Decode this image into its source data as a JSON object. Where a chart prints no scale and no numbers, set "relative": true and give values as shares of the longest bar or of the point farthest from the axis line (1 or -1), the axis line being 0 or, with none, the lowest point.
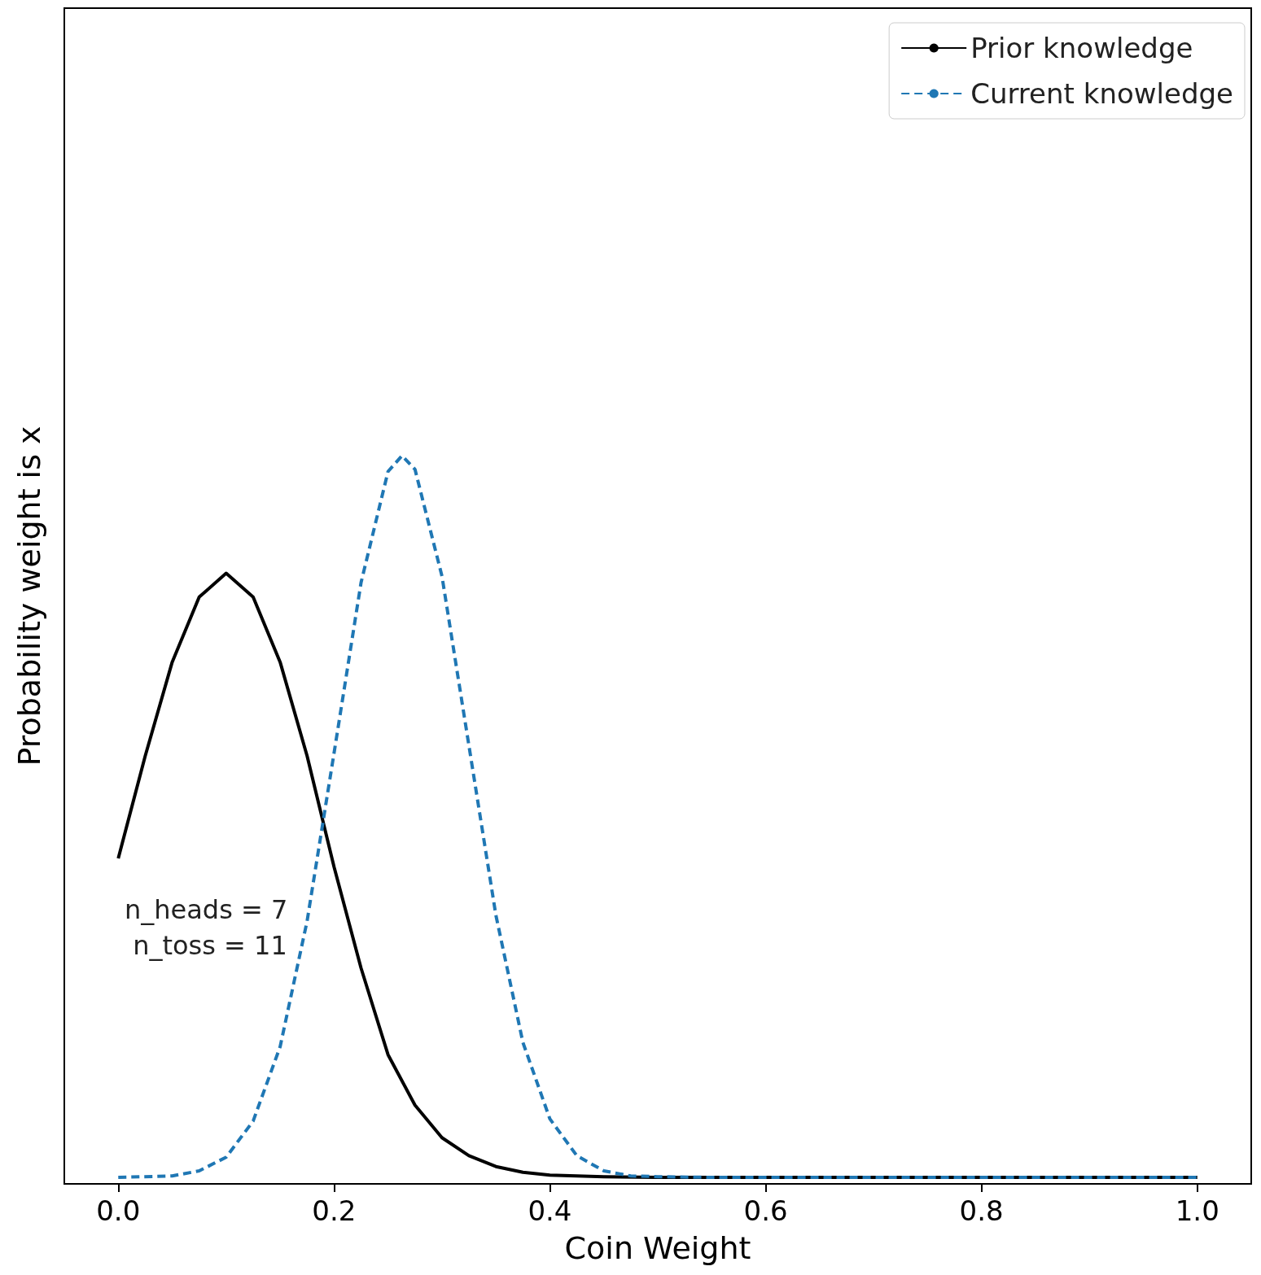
{
  "chart_data": {
    "type": "line",
    "xlabel": "Coin Weight",
    "ylabel": "Probability weight is x",
    "relative": true,
    "tick_labels": "x",
    "grid": false,
    "legend": "top right",
    "marker": "none",
    "xlim": [
      -0.05,
      1.05
    ],
    "xticks": [
      {
        "value": 0,
        "label": "0.0"
      },
      {
        "value": 0.2,
        "label": "0.2"
      },
      {
        "value": 0.4,
        "label": "0.4"
      },
      {
        "value": 0.6,
        "label": "0.6"
      },
      {
        "value": 0.8,
        "label": "0.8"
      },
      {
        "value": 1,
        "label": "1.0"
      }
    ],
    "annotations": [
      "n_heads = 7\n n_toss = 11"
    ],
    "series": [
      {
        "name": "Prior knowledge",
        "color": "#000000",
        "line_style": "solid",
        "x": [
          0,
          0.025,
          0.05,
          0.075,
          0.1,
          0.125,
          0.15,
          0.175,
          0.2,
          0.225,
          0.25,
          0.275,
          0.3,
          0.325,
          0.35,
          0.375,
          0.4,
          0.45,
          0.5,
          1.0
        ],
        "values": [
          0.442,
          0.584,
          0.714,
          0.804,
          0.837,
          0.804,
          0.714,
          0.584,
          0.43,
          0.29,
          0.17,
          0.1,
          0.055,
          0.03,
          0.015,
          0.007,
          0.003,
          0.001,
          0,
          0
        ]
      },
      {
        "name": "Current knowledge",
        "color": "#1f77b4",
        "line_style": "dashed",
        "x": [
          0,
          0.05,
          0.075,
          0.1,
          0.125,
          0.15,
          0.175,
          0.2,
          0.225,
          0.25,
          0.263,
          0.275,
          0.3,
          0.325,
          0.35,
          0.375,
          0.4,
          0.425,
          0.45,
          0.475,
          0.5,
          0.55,
          1.0
        ],
        "values": [
          0,
          0.002,
          0.009,
          0.028,
          0.078,
          0.181,
          0.355,
          0.588,
          0.824,
          0.978,
          1,
          0.981,
          0.833,
          0.598,
          0.363,
          0.187,
          0.081,
          0.03,
          0.009,
          0.002,
          0.001,
          0,
          0
        ]
      }
    ]
  }
}
